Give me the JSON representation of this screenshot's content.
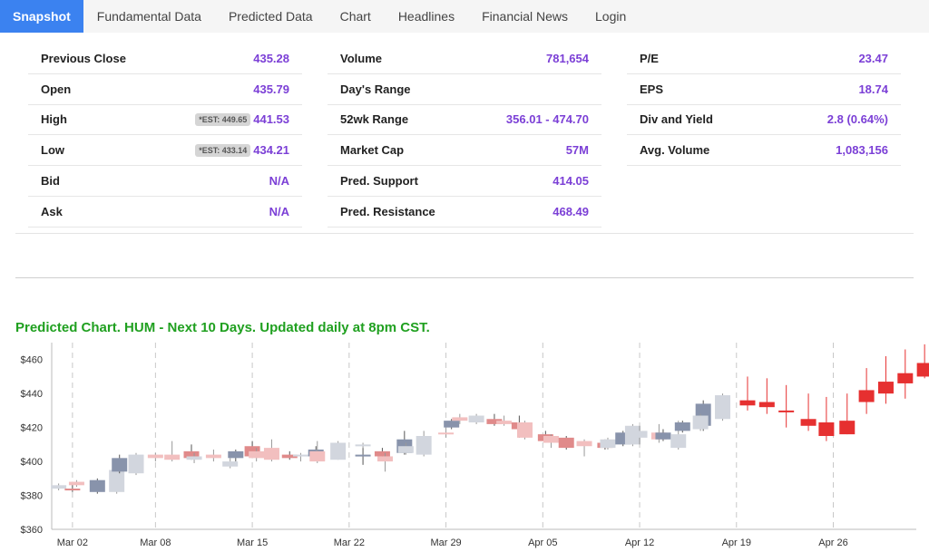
{
  "tabs": [
    {
      "label": "Snapshot",
      "active": true,
      "name": "tab-snapshot"
    },
    {
      "label": "Fundamental Data",
      "active": false,
      "name": "tab-fundamental-data"
    },
    {
      "label": "Predicted Data",
      "active": false,
      "name": "tab-predicted-data"
    },
    {
      "label": "Chart",
      "active": false,
      "name": "tab-chart"
    },
    {
      "label": "Headlines",
      "active": false,
      "name": "tab-headlines"
    },
    {
      "label": "Financial News",
      "active": false,
      "name": "tab-financial-news"
    },
    {
      "label": "Login",
      "active": false,
      "name": "tab-login"
    }
  ],
  "columns": [
    [
      {
        "label": "Previous Close",
        "value": "435.28"
      },
      {
        "label": "Open",
        "value": "435.79"
      },
      {
        "label": "High",
        "value": "441.53",
        "est": "*EST: 449.65"
      },
      {
        "label": "Low",
        "value": "434.21",
        "est": "*EST: 433.14"
      },
      {
        "label": "Bid",
        "value": "N/A"
      },
      {
        "label": "Ask",
        "value": "N/A"
      }
    ],
    [
      {
        "label": "Volume",
        "value": "781,654"
      },
      {
        "label": "Day's Range",
        "value": ""
      },
      {
        "label": "52wk Range",
        "value": "356.01 - 474.70"
      },
      {
        "label": "Market Cap",
        "value": "57M"
      },
      {
        "label": "Pred. Support",
        "value": "414.05"
      },
      {
        "label": "Pred. Resistance",
        "value": "468.49"
      }
    ],
    [
      {
        "label": "P/E",
        "value": "23.47"
      },
      {
        "label": "EPS",
        "value": "18.74"
      },
      {
        "label": "Div and Yield",
        "value": "2.8 (0.64%)"
      },
      {
        "label": "Avg. Volume",
        "value": "1,083,156"
      }
    ]
  ],
  "chart_title": "Predicted Chart. HUM - Next 10 Days. Updated daily at 8pm CST.",
  "colors": {
    "up_hist": "#8893ab",
    "down_hist": "#e08a8a",
    "up_pred": "#d2d6de",
    "down_pred": "#f2bfbf",
    "forecast": "#e63030"
  },
  "chart_data": {
    "type": "candlestick",
    "title": "Predicted Chart. HUM - Next 10 Days. Updated daily at 8pm CST.",
    "ylim": [
      360,
      470
    ],
    "yticks": [
      360,
      380,
      400,
      420,
      440,
      460
    ],
    "ytick_labels": [
      "$360",
      "$380",
      "$400",
      "$420",
      "$440",
      "$460"
    ],
    "xtick_labels": [
      "Mar 02",
      "Mar 08",
      "Mar 15",
      "Mar 22",
      "Mar 29",
      "Apr 05",
      "Apr 12",
      "Apr 19",
      "Apr 26"
    ],
    "xtick_days": [
      1,
      7,
      14,
      21,
      28,
      35,
      42,
      49,
      56
    ],
    "day_range": [
      -0.5,
      62
    ],
    "candles": [
      {
        "d": 0,
        "o": 384,
        "h": 387,
        "l": 383,
        "c": 386,
        "k": "up_pred"
      },
      {
        "d": 1,
        "o": 384,
        "h": 388,
        "l": 382,
        "c": 383,
        "k": "down_hist"
      },
      {
        "d": 1.3,
        "o": 386,
        "h": 389,
        "l": 385,
        "c": 388,
        "k": "down_pred"
      },
      {
        "d": 2.8,
        "o": 382,
        "h": 390,
        "l": 381,
        "c": 389,
        "k": "up_hist"
      },
      {
        "d": 4.2,
        "o": 382,
        "h": 396,
        "l": 381,
        "c": 395,
        "k": "up_pred"
      },
      {
        "d": 4.4,
        "o": 394,
        "h": 404,
        "l": 393,
        "c": 402,
        "k": "up_hist"
      },
      {
        "d": 5.6,
        "o": 393,
        "h": 405,
        "l": 392,
        "c": 404,
        "k": "up_pred"
      },
      {
        "d": 7,
        "o": 402,
        "h": 405,
        "l": 400,
        "c": 404,
        "k": "down_pred"
      },
      {
        "d": 8.2,
        "o": 404,
        "h": 412,
        "l": 400,
        "c": 401,
        "k": "down_pred"
      },
      {
        "d": 9.6,
        "o": 406,
        "h": 410,
        "l": 401,
        "c": 402,
        "k": "down_hist"
      },
      {
        "d": 9.8,
        "o": 403,
        "h": 405,
        "l": 399,
        "c": 401,
        "k": "up_pred"
      },
      {
        "d": 11.2,
        "o": 404,
        "h": 407,
        "l": 400,
        "c": 402,
        "k": "down_pred"
      },
      {
        "d": 12.8,
        "o": 402,
        "h": 407,
        "l": 400,
        "c": 406,
        "k": "up_hist"
      },
      {
        "d": 12.4,
        "o": 397,
        "h": 402,
        "l": 396,
        "c": 400,
        "k": "up_pred"
      },
      {
        "d": 14,
        "o": 409,
        "h": 412,
        "l": 402,
        "c": 403,
        "k": "down_hist"
      },
      {
        "d": 14.3,
        "o": 402,
        "h": 408,
        "l": 400,
        "c": 406,
        "k": "down_pred"
      },
      {
        "d": 15.4,
        "o": 408,
        "h": 413,
        "l": 400,
        "c": 401,
        "k": "down_pred"
      },
      {
        "d": 16.7,
        "o": 404,
        "h": 406,
        "l": 401,
        "c": 402,
        "k": "down_hist"
      },
      {
        "d": 17.5,
        "o": 403,
        "h": 405,
        "l": 400,
        "c": 404,
        "k": "up_pred"
      },
      {
        "d": 18.6,
        "o": 403,
        "h": 409,
        "l": 401,
        "c": 407,
        "k": "up_hist"
      },
      {
        "d": 18.7,
        "o": 400,
        "h": 412,
        "l": 399,
        "c": 406,
        "k": "down_pred"
      },
      {
        "d": 20.2,
        "o": 401,
        "h": 412,
        "l": 401,
        "c": 411,
        "k": "up_pred"
      },
      {
        "d": 22,
        "o": 403,
        "h": 408,
        "l": 398,
        "c": 404,
        "k": "up_hist"
      },
      {
        "d": 22,
        "o": 409,
        "h": 411,
        "l": 408,
        "c": 410,
        "k": "up_pred"
      },
      {
        "d": 23.4,
        "o": 406,
        "h": 408,
        "l": 402,
        "c": 403,
        "k": "down_hist"
      },
      {
        "d": 23.6,
        "o": 400,
        "h": 405,
        "l": 394,
        "c": 403,
        "k": "down_pred"
      },
      {
        "d": 25,
        "o": 405,
        "h": 418,
        "l": 404,
        "c": 413,
        "k": "up_hist"
      },
      {
        "d": 25.1,
        "o": 405,
        "h": 411,
        "l": 404,
        "c": 409,
        "k": "up_pred"
      },
      {
        "d": 26.4,
        "o": 404,
        "h": 418,
        "l": 403,
        "c": 415,
        "k": "up_pred"
      },
      {
        "d": 28,
        "o": 417,
        "h": 420,
        "l": 414,
        "c": 416,
        "k": "down_pred"
      },
      {
        "d": 28.4,
        "o": 420,
        "h": 425,
        "l": 419,
        "c": 424,
        "k": "up_hist"
      },
      {
        "d": 29,
        "o": 426,
        "h": 428,
        "l": 422,
        "c": 424,
        "k": "down_pred"
      },
      {
        "d": 30.2,
        "o": 423,
        "h": 428,
        "l": 422,
        "c": 427,
        "k": "up_pred"
      },
      {
        "d": 31.5,
        "o": 422,
        "h": 428,
        "l": 421,
        "c": 425,
        "k": "down_hist"
      },
      {
        "d": 32.2,
        "o": 424,
        "h": 427,
        "l": 421,
        "c": 422,
        "k": "down_pred"
      },
      {
        "d": 33.3,
        "o": 423,
        "h": 427,
        "l": 414,
        "c": 419,
        "k": "down_hist"
      },
      {
        "d": 33.7,
        "o": 423,
        "h": 424,
        "l": 413,
        "c": 414,
        "k": "down_pred"
      },
      {
        "d": 35.2,
        "o": 416,
        "h": 418,
        "l": 411,
        "c": 412,
        "k": "down_hist"
      },
      {
        "d": 35.6,
        "o": 411,
        "h": 416,
        "l": 408,
        "c": 415,
        "k": "down_pred"
      },
      {
        "d": 36.7,
        "o": 414,
        "h": 415,
        "l": 407,
        "c": 408,
        "k": "down_hist"
      },
      {
        "d": 38,
        "o": 409,
        "h": 413,
        "l": 403,
        "c": 412,
        "k": "down_pred"
      },
      {
        "d": 39.5,
        "o": 411,
        "h": 413,
        "l": 407,
        "c": 408,
        "k": "down_hist"
      },
      {
        "d": 39.7,
        "o": 408,
        "h": 414,
        "l": 407,
        "c": 413,
        "k": "up_pred"
      },
      {
        "d": 40.8,
        "o": 410,
        "h": 418,
        "l": 409,
        "c": 417,
        "k": "up_hist"
      },
      {
        "d": 41.5,
        "o": 410,
        "h": 422,
        "l": 409,
        "c": 421,
        "k": "up_pred"
      },
      {
        "d": 42,
        "o": 414,
        "h": 421,
        "l": 410,
        "c": 418,
        "k": "up_pred"
      },
      {
        "d": 43.4,
        "o": 417,
        "h": 422,
        "l": 411,
        "c": 413,
        "k": "down_pred"
      },
      {
        "d": 43.7,
        "o": 413,
        "h": 419,
        "l": 412,
        "c": 417,
        "k": "up_hist"
      },
      {
        "d": 44.8,
        "o": 408,
        "h": 424,
        "l": 407,
        "c": 416,
        "k": "up_pred"
      },
      {
        "d": 45.1,
        "o": 418,
        "h": 424,
        "l": 417,
        "c": 423,
        "k": "up_hist"
      },
      {
        "d": 46.6,
        "o": 421,
        "h": 436,
        "l": 418,
        "c": 434,
        "k": "up_hist"
      },
      {
        "d": 46.4,
        "o": 419,
        "h": 428,
        "l": 418,
        "c": 427,
        "k": "up_pred"
      },
      {
        "d": 48,
        "o": 425,
        "h": 440,
        "l": 424,
        "c": 439,
        "k": "up_pred"
      },
      {
        "d": 49.8,
        "o": 436,
        "h": 450,
        "l": 430,
        "c": 433,
        "k": "forecast"
      },
      {
        "d": 51.2,
        "o": 435,
        "h": 449,
        "l": 428,
        "c": 432,
        "k": "forecast"
      },
      {
        "d": 52.6,
        "o": 430,
        "h": 445,
        "l": 420,
        "c": 429,
        "k": "forecast"
      },
      {
        "d": 54.2,
        "o": 425,
        "h": 440,
        "l": 418,
        "c": 421,
        "k": "forecast"
      },
      {
        "d": 55.5,
        "o": 423,
        "h": 438,
        "l": 412,
        "c": 415,
        "k": "forecast"
      },
      {
        "d": 57,
        "o": 416,
        "h": 440,
        "l": 416,
        "c": 424,
        "k": "forecast"
      },
      {
        "d": 58.4,
        "o": 435,
        "h": 455,
        "l": 428,
        "c": 442,
        "k": "forecast"
      },
      {
        "d": 59.8,
        "o": 440,
        "h": 462,
        "l": 434,
        "c": 447,
        "k": "forecast"
      },
      {
        "d": 61.2,
        "o": 446,
        "h": 466,
        "l": 437,
        "c": 452,
        "k": "forecast"
      },
      {
        "d": 62.6,
        "o": 450,
        "h": 469,
        "l": 449,
        "c": 458,
        "k": "forecast"
      }
    ]
  }
}
